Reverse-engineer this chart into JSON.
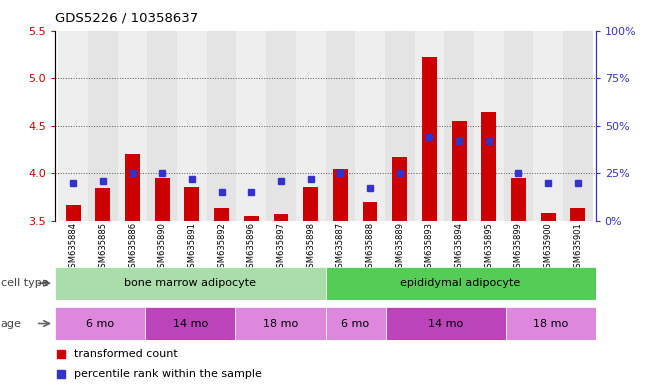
{
  "title": "GDS5226 / 10358637",
  "samples": [
    "GSM635884",
    "GSM635885",
    "GSM635886",
    "GSM635890",
    "GSM635891",
    "GSM635892",
    "GSM635896",
    "GSM635897",
    "GSM635898",
    "GSM635887",
    "GSM635888",
    "GSM635889",
    "GSM635893",
    "GSM635894",
    "GSM635895",
    "GSM635899",
    "GSM635900",
    "GSM635901"
  ],
  "red_values": [
    3.67,
    3.85,
    4.2,
    3.95,
    3.86,
    3.63,
    3.55,
    3.57,
    3.86,
    4.05,
    3.7,
    4.17,
    5.22,
    4.55,
    4.65,
    3.95,
    3.58,
    3.63
  ],
  "blue_pct": [
    20,
    21,
    25,
    25,
    22,
    15,
    15,
    21,
    22,
    25,
    17,
    25,
    44,
    42,
    42,
    25,
    20,
    20
  ],
  "ylim_left": [
    3.5,
    5.5
  ],
  "ylim_right": [
    0,
    100
  ],
  "yticks_left": [
    3.5,
    4.0,
    4.5,
    5.0,
    5.5
  ],
  "yticks_right": [
    0,
    25,
    50,
    75,
    100
  ],
  "ytick_labels_right": [
    "0%",
    "25%",
    "50%",
    "75%",
    "100%"
  ],
  "red_color": "#cc0000",
  "blue_color": "#3333cc",
  "bar_bottom": 3.5,
  "cell_type_groups": [
    {
      "label": "bone marrow adipocyte",
      "start": 0,
      "end": 9,
      "color": "#aaddaa"
    },
    {
      "label": "epididymal adipocyte",
      "start": 9,
      "end": 18,
      "color": "#55cc55"
    }
  ],
  "age_groups": [
    {
      "label": "6 mo",
      "start": 0,
      "end": 3,
      "color": "#dd88dd"
    },
    {
      "label": "14 mo",
      "start": 3,
      "end": 6,
      "color": "#bb44bb"
    },
    {
      "label": "18 mo",
      "start": 6,
      "end": 9,
      "color": "#dd88dd"
    },
    {
      "label": "6 mo",
      "start": 9,
      "end": 11,
      "color": "#dd88dd"
    },
    {
      "label": "14 mo",
      "start": 11,
      "end": 15,
      "color": "#bb44bb"
    },
    {
      "label": "18 mo",
      "start": 15,
      "end": 18,
      "color": "#dd88dd"
    }
  ],
  "legend_red": "transformed count",
  "legend_blue": "percentile rank within the sample",
  "cell_type_label": "cell type",
  "age_label": "age",
  "bar_width": 0.5,
  "dotted_color": "#555555"
}
